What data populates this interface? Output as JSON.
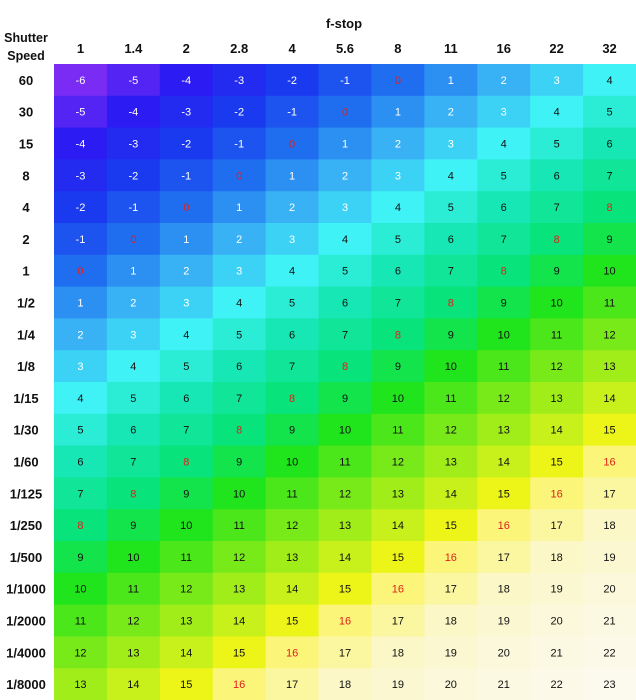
{
  "chart_data": {
    "type": "heatmap",
    "title": "",
    "xlabel": "f-stop",
    "ylabel": "Shutter Speed",
    "ylabel_lines": [
      "Shutter",
      "Speed"
    ],
    "x_categories": [
      "1",
      "1.4",
      "2",
      "2.8",
      "4",
      "5.6",
      "8",
      "11",
      "16",
      "22",
      "32"
    ],
    "y_categories": [
      "60",
      "30",
      "15",
      "8",
      "4",
      "2",
      "1",
      "1/2",
      "1/4",
      "1/8",
      "1/15",
      "1/30",
      "1/60",
      "1/125",
      "1/250",
      "1/500",
      "1/1000",
      "1/2000",
      "1/4000",
      "1/8000"
    ],
    "values": [
      [
        -6,
        -5,
        -4,
        -3,
        -2,
        -1,
        0,
        1,
        2,
        3,
        4
      ],
      [
        -5,
        -4,
        -3,
        -2,
        -1,
        0,
        1,
        2,
        3,
        4,
        5
      ],
      [
        -4,
        -3,
        -2,
        -1,
        0,
        1,
        2,
        3,
        4,
        5,
        6
      ],
      [
        -3,
        -2,
        -1,
        0,
        1,
        2,
        3,
        4,
        5,
        6,
        7
      ],
      [
        -2,
        -1,
        0,
        1,
        2,
        3,
        4,
        5,
        6,
        7,
        8
      ],
      [
        -1,
        0,
        1,
        2,
        3,
        4,
        5,
        6,
        7,
        8,
        9
      ],
      [
        0,
        1,
        2,
        3,
        4,
        5,
        6,
        7,
        8,
        9,
        10
      ],
      [
        1,
        2,
        3,
        4,
        5,
        6,
        7,
        8,
        9,
        10,
        11
      ],
      [
        2,
        3,
        4,
        5,
        6,
        7,
        8,
        9,
        10,
        11,
        12
      ],
      [
        3,
        4,
        5,
        6,
        7,
        8,
        9,
        10,
        11,
        12,
        13
      ],
      [
        4,
        5,
        6,
        7,
        8,
        9,
        10,
        11,
        12,
        13,
        14
      ],
      [
        5,
        6,
        7,
        8,
        9,
        10,
        11,
        12,
        13,
        14,
        15
      ],
      [
        6,
        7,
        8,
        9,
        10,
        11,
        12,
        13,
        14,
        15,
        16
      ],
      [
        7,
        8,
        9,
        10,
        11,
        12,
        13,
        14,
        15,
        16,
        17
      ],
      [
        8,
        9,
        10,
        11,
        12,
        13,
        14,
        15,
        16,
        17,
        18
      ],
      [
        9,
        10,
        11,
        12,
        13,
        14,
        15,
        16,
        17,
        18,
        19
      ],
      [
        10,
        11,
        12,
        13,
        14,
        15,
        16,
        17,
        18,
        19,
        20
      ],
      [
        11,
        12,
        13,
        14,
        15,
        16,
        17,
        18,
        19,
        20,
        21
      ],
      [
        12,
        13,
        14,
        15,
        16,
        17,
        18,
        19,
        20,
        21,
        22
      ],
      [
        13,
        14,
        15,
        16,
        17,
        18,
        19,
        20,
        21,
        22,
        23
      ]
    ],
    "red_labels": [
      0,
      8,
      16
    ],
    "color_scale": [
      {
        "value": -6,
        "color": "#7a2cf5"
      },
      {
        "value": -4,
        "color": "#2c1bf2"
      },
      {
        "value": -2,
        "color": "#1a3af0"
      },
      {
        "value": 0,
        "color": "#1f6ef0"
      },
      {
        "value": 2,
        "color": "#38b2f4"
      },
      {
        "value": 4,
        "color": "#3ff2f6"
      },
      {
        "value": 6,
        "color": "#17e7b4"
      },
      {
        "value": 8,
        "color": "#08e37c"
      },
      {
        "value": 10,
        "color": "#20e41c"
      },
      {
        "value": 12,
        "color": "#78ea1a"
      },
      {
        "value": 14,
        "color": "#c8f01a"
      },
      {
        "value": 15,
        "color": "#ecf418"
      },
      {
        "value": 16,
        "color": "#fbf57a"
      },
      {
        "value": 18,
        "color": "#fbf7c6"
      },
      {
        "value": 20,
        "color": "#fbf8dc"
      },
      {
        "value": 23,
        "color": "#fcfaee"
      }
    ],
    "legend": "none",
    "grid": false
  }
}
